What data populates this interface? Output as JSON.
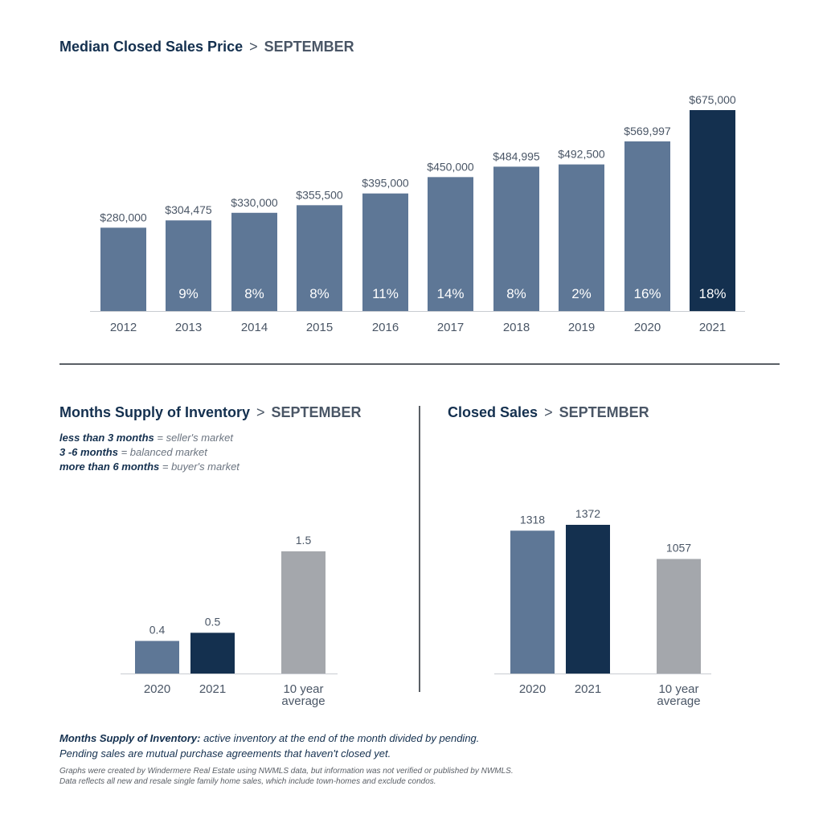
{
  "colors": {
    "prior_year_bar": "#5e7796",
    "current_year_bar": "#14304f",
    "average_bar": "#a4a7ac",
    "title_navy": "#14304f",
    "title_gray": "#4a5666",
    "axis_text": "#4a5666",
    "pct_text": "#ffffff"
  },
  "separator": ">",
  "chart_data": [
    {
      "id": "median_price",
      "type": "bar",
      "title": "Median Closed Sales Price",
      "subtitle": "SEPTEMBER",
      "categories": [
        "2012",
        "2013",
        "2014",
        "2015",
        "2016",
        "2017",
        "2018",
        "2019",
        "2020",
        "2021"
      ],
      "values": [
        280000,
        304475,
        330000,
        355500,
        395000,
        450000,
        484995,
        492500,
        569997,
        675000
      ],
      "value_labels": [
        "$280,000",
        "$304,475",
        "$330,000",
        "$355,500",
        "$395,000",
        "$450,000",
        "$484,995",
        "$492,500",
        "$569,997",
        "$675,000"
      ],
      "pct_change_labels": [
        "",
        "9%",
        "8%",
        "8%",
        "11%",
        "14%",
        "8%",
        "2%",
        "16%",
        "18%"
      ],
      "highlight_index": 9,
      "xlabel": "",
      "ylabel": "",
      "ylim": [
        0,
        675000
      ],
      "grid": false
    },
    {
      "id": "months_supply",
      "type": "bar",
      "title": "Months Supply of Inventory",
      "subtitle": "SEPTEMBER",
      "categories": [
        "2020",
        "2021",
        "10 year average"
      ],
      "category_lines": [
        [
          "2020"
        ],
        [
          "2021"
        ],
        [
          "10 year",
          "average"
        ]
      ],
      "values": [
        0.4,
        0.5,
        1.5
      ],
      "value_labels": [
        "0.4",
        "0.5",
        "1.5"
      ],
      "ylim": [
        0,
        1.5
      ],
      "grid": false
    },
    {
      "id": "closed_sales",
      "type": "bar",
      "title": "Closed Sales",
      "subtitle": "SEPTEMBER",
      "categories": [
        "2020",
        "2021",
        "10 year average"
      ],
      "category_lines": [
        [
          "2020"
        ],
        [
          "2021"
        ],
        [
          "10 year",
          "average"
        ]
      ],
      "values": [
        1318,
        1372,
        1057
      ],
      "value_labels": [
        "1318",
        "1372",
        "1057"
      ],
      "ylim": [
        0,
        1372
      ],
      "grid": false
    }
  ],
  "legend": [
    {
      "bold": "less than 3 months",
      "rest": " = seller's market"
    },
    {
      "bold": "3 -6 months",
      "rest": " = balanced market"
    },
    {
      "bold": "more than 6 months",
      "rest": " = buyer's market"
    }
  ],
  "footnote": {
    "bold": "Months Supply of Inventory:",
    "line1_rest": " active inventory at the end of the month divided by pending.",
    "line2": "Pending sales are mutual purchase agreements that haven't closed yet.",
    "small1": "Graphs were created by Windermere Real Estate using NWMLS data, but information was not verified or published by NWMLS.",
    "small2": "Data reflects all new and resale single family home sales, which include town-homes and exclude condos."
  }
}
